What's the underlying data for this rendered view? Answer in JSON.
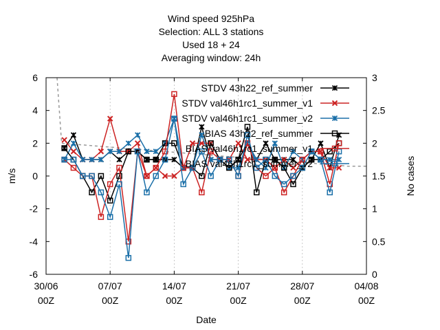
{
  "chart_data": {
    "type": "line",
    "title_lines": [
      "Wind speed 925hPa",
      "Selection: ALL      3 stations",
      "Used  18  + 24",
      "Averaging window: 24h"
    ],
    "xlabel": "Date",
    "ylabel": "m/s",
    "y2label": "No cases",
    "ylim": [
      -6,
      6
    ],
    "y2lim": [
      0,
      3
    ],
    "xlim_days": [
      0,
      35
    ],
    "xticks": [
      {
        "day": 0,
        "line1": "30/06",
        "line2": "00Z"
      },
      {
        "day": 7,
        "line1": "07/07",
        "line2": "00Z"
      },
      {
        "day": 14,
        "line1": "14/07",
        "line2": "00Z"
      },
      {
        "day": 21,
        "line1": "21/07",
        "line2": "00Z"
      },
      {
        "day": 28,
        "line1": "28/07",
        "line2": "00Z"
      },
      {
        "day": 35,
        "line1": "04/08",
        "line2": "00Z"
      }
    ],
    "yticks": [
      -6,
      -4,
      -2,
      0,
      2,
      4,
      6
    ],
    "y2ticks": [
      "0",
      "0.5",
      "1",
      "1.5",
      "2",
      "2.5",
      "3"
    ],
    "legend_position": "top-right",
    "x_days": [
      2,
      3,
      4,
      5,
      6,
      7,
      8,
      9,
      10,
      11,
      12,
      13,
      14,
      15,
      16,
      17,
      18,
      19,
      20,
      21,
      22,
      23,
      24,
      25,
      26,
      27,
      28,
      29,
      30,
      31,
      32
    ],
    "series": [
      {
        "name": "STDV 43h22_ref_summer",
        "color": "#000000",
        "marker": "star",
        "values": [
          1.7,
          2.5,
          1.0,
          1.0,
          1.0,
          1.5,
          1.0,
          1.5,
          1.5,
          1.0,
          1.0,
          1.0,
          1.0,
          0.5,
          0.5,
          3.0,
          1.0,
          1.0,
          0.5,
          1.0,
          2.0,
          1.0,
          2.0,
          1.0,
          1.0,
          1.0,
          0.5,
          1.0,
          2.0,
          0.5,
          2.5
        ]
      },
      {
        "name": "STDV val46h1rc1_summer_v1",
        "color": "#cc2222",
        "marker": "x",
        "values": [
          2.2,
          1.5,
          1.0,
          1.0,
          1.5,
          3.5,
          1.5,
          1.5,
          2.0,
          0.0,
          0.5,
          0.0,
          0.0,
          0.5,
          2.0,
          2.0,
          2.0,
          1.0,
          1.0,
          2.0,
          1.0,
          1.0,
          1.0,
          0.5,
          1.0,
          0.5,
          1.0,
          1.5,
          1.5,
          0.5,
          0.5
        ]
      },
      {
        "name": "STDV val46h1rc1_summer_v2",
        "color": "#1a6fa8",
        "marker": "star",
        "values": [
          1.0,
          2.0,
          1.0,
          1.0,
          1.0,
          1.5,
          1.5,
          2.0,
          2.5,
          1.5,
          1.5,
          2.0,
          3.5,
          0.5,
          0.5,
          2.5,
          1.0,
          1.0,
          0.5,
          0.5,
          2.0,
          1.0,
          0.5,
          2.0,
          0.5,
          1.5,
          1.0,
          1.5,
          1.0,
          1.0,
          1.0
        ]
      },
      {
        "name": "BIAS 43h22_ref_summer",
        "color": "#000000",
        "marker": "square",
        "values": [
          1.7,
          1.0,
          0.0,
          -1.0,
          0.0,
          -1.5,
          0.0,
          1.5,
          1.5,
          1.0,
          1.0,
          2.0,
          2.0,
          0.5,
          0.5,
          0.0,
          2.0,
          1.0,
          0.5,
          1.0,
          3.0,
          -1.0,
          1.0,
          1.0,
          0.5,
          -0.5,
          0.5,
          1.0,
          1.0,
          1.5,
          2.0
        ]
      },
      {
        "name": "BIAS val46h1rc1_summer_v1",
        "color": "#cc2222",
        "marker": "square",
        "values": [
          1.0,
          0.5,
          0.0,
          0.0,
          -2.5,
          -0.5,
          0.5,
          -4.0,
          1.5,
          0.0,
          0.5,
          1.5,
          5.0,
          0.5,
          0.5,
          -1.0,
          1.5,
          1.0,
          1.0,
          0.0,
          2.0,
          0.5,
          0.0,
          0.5,
          -1.0,
          0.0,
          1.0,
          1.5,
          1.5,
          -0.5,
          2.0
        ]
      },
      {
        "name": "BIAS val46h1rc1_summer_v2",
        "color": "#1a6fa8",
        "marker": "square",
        "values": [
          1.0,
          1.0,
          0.0,
          0.0,
          -1.0,
          -2.5,
          -0.5,
          -5.0,
          1.5,
          -1.0,
          0.0,
          1.0,
          3.5,
          -0.5,
          0.5,
          1.5,
          0.0,
          1.0,
          1.0,
          0.0,
          2.5,
          0.5,
          1.0,
          0.0,
          -0.5,
          0.0,
          0.5,
          1.5,
          1.0,
          -1.0,
          1.5
        ]
      }
    ],
    "cases_series": {
      "color": "#999999",
      "dash": true,
      "points": [
        [
          1.2,
          3.0
        ],
        [
          1.7,
          2.0
        ],
        [
          33,
          1.65
        ],
        [
          35,
          1.65
        ]
      ]
    }
  }
}
